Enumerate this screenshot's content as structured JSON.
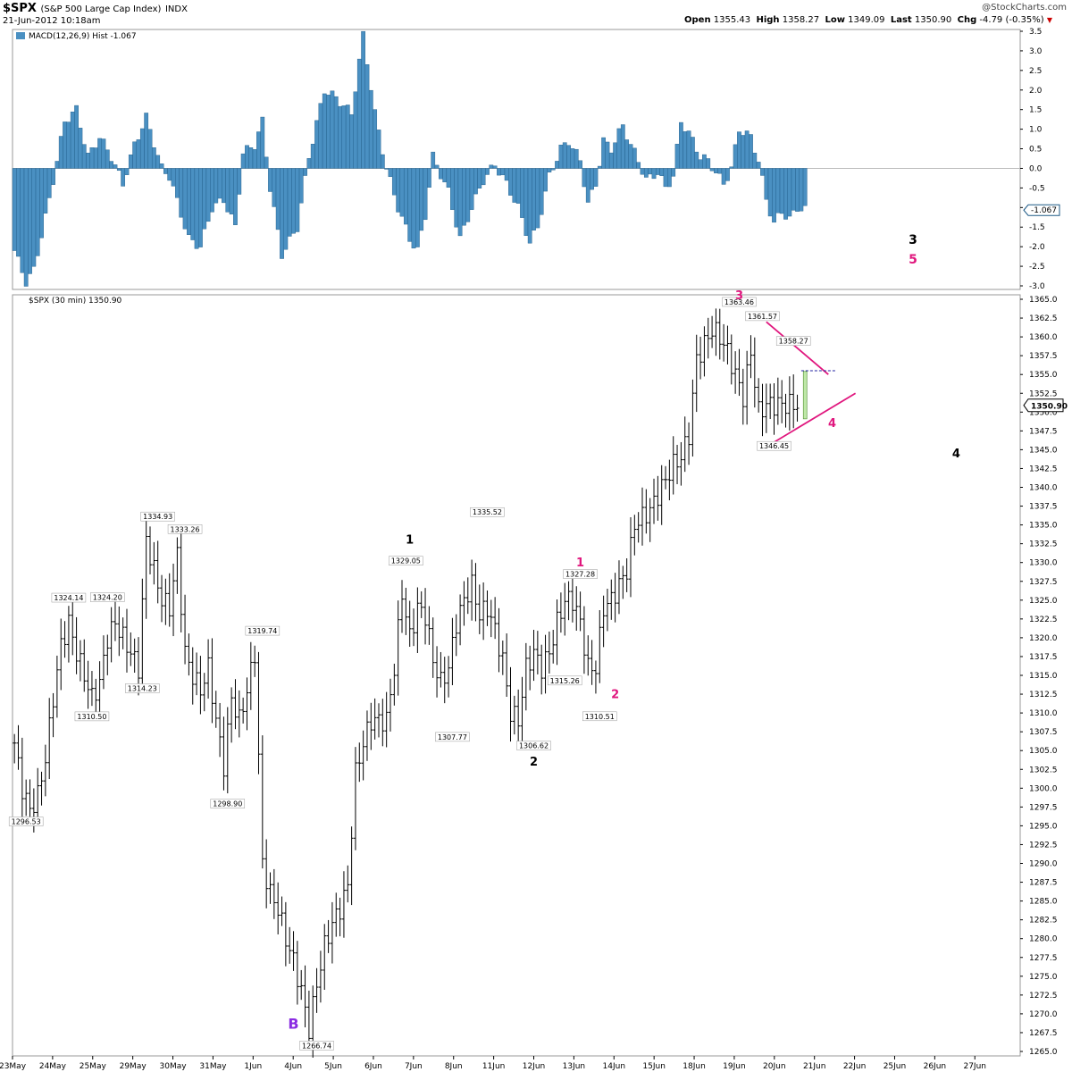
{
  "header": {
    "symbol": "$SPX",
    "name": "(S&P 500 Large Cap Index)",
    "exchange": "INDX",
    "datetime": "21-Jun-2012 10:18am",
    "open_label": "Open",
    "open": "1355.43",
    "high_label": "High",
    "high": "1358.27",
    "low_label": "Low",
    "low": "1349.09",
    "last_label": "Last",
    "last": "1350.90",
    "chg_label": "Chg",
    "chg": "-4.79 (-0.35%)",
    "watermark": "@StockCharts.com"
  },
  "colors": {
    "bar": "#000000",
    "hist": "#4a90c2",
    "hist_edge": "#1d5a86",
    "pink": "#e0177e",
    "purple": "#8a2be2",
    "grid": "#cccccc"
  },
  "chart_data": [
    {
      "type": "bar",
      "title": "MACD(12,26,9) Hist -1.067",
      "ylim": [
        -3.0,
        3.5
      ],
      "y_ticks": [
        "3.5",
        "3.0",
        "2.5",
        "2.0",
        "1.5",
        "1.0",
        "0.5",
        "0.0",
        "-0.5",
        "-1.0",
        "-1.5",
        "-2.0",
        "-2.5",
        "-3.0"
      ],
      "current_value": "-1.067",
      "key_points": [
        [
          0,
          -2.1
        ],
        [
          3,
          -2.9
        ],
        [
          5,
          -2.6
        ],
        [
          9,
          -0.8
        ],
        [
          13,
          1.2
        ],
        [
          16,
          1.5
        ],
        [
          19,
          0.3
        ],
        [
          22,
          0.8
        ],
        [
          25,
          0.3
        ],
        [
          28,
          -0.4
        ],
        [
          31,
          0.6
        ],
        [
          34,
          1.3
        ],
        [
          38,
          0.0
        ],
        [
          40,
          -0.2
        ],
        [
          45,
          -1.8
        ],
        [
          48,
          -2.0
        ],
        [
          51,
          -1.0
        ],
        [
          54,
          -0.8
        ],
        [
          57,
          -1.5
        ],
        [
          59,
          0.4
        ],
        [
          62,
          0.6
        ],
        [
          64,
          1.2
        ],
        [
          66,
          -0.5
        ],
        [
          69,
          -2.2
        ],
        [
          73,
          -1.5
        ],
        [
          76,
          0.3
        ],
        [
          80,
          2.0
        ],
        [
          83,
          1.8
        ],
        [
          87,
          1.4
        ],
        [
          90,
          3.4
        ],
        [
          93,
          1.4
        ],
        [
          96,
          0.0
        ],
        [
          99,
          -1.0
        ],
        [
          102,
          -1.8
        ],
        [
          104,
          -2.1
        ],
        [
          106,
          -1.2
        ],
        [
          108,
          0.3
        ],
        [
          112,
          -0.6
        ],
        [
          115,
          -1.8
        ],
        [
          118,
          -1.0
        ],
        [
          121,
          -0.3
        ],
        [
          124,
          0.1
        ],
        [
          127,
          -0.4
        ],
        [
          130,
          -1.0
        ],
        [
          133,
          -1.9
        ],
        [
          135,
          -1.5
        ],
        [
          138,
          -0.2
        ],
        [
          141,
          0.5
        ],
        [
          143,
          0.7
        ],
        [
          146,
          0.2
        ],
        [
          148,
          -0.9
        ],
        [
          150,
          -0.4
        ],
        [
          152,
          0.7
        ],
        [
          154,
          0.5
        ],
        [
          157,
          1.1
        ],
        [
          159,
          0.6
        ],
        [
          161,
          0.2
        ],
        [
          163,
          -0.3
        ],
        [
          166,
          -0.1
        ],
        [
          168,
          -0.5
        ],
        [
          170,
          -0.2
        ],
        [
          172,
          1.2
        ],
        [
          174,
          0.9
        ],
        [
          177,
          0.3
        ],
        [
          179,
          0.2
        ],
        [
          181,
          -0.1
        ],
        [
          183,
          -0.4
        ],
        [
          185,
          0.0
        ],
        [
          187,
          1.0
        ],
        [
          190,
          0.8
        ],
        [
          192,
          0.2
        ],
        [
          194,
          -0.8
        ],
        [
          196,
          -1.4
        ],
        [
          198,
          -1.1
        ],
        [
          200,
          -1.3
        ],
        [
          202,
          -1.0
        ],
        [
          204,
          -1.067
        ]
      ]
    },
    {
      "type": "bar",
      "title": "$SPX (30 min) 1350.90",
      "ylim": [
        1265.0,
        1365.0
      ],
      "y_ticks": [
        "1365.0",
        "1362.5",
        "1360.0",
        "1357.5",
        "1355.0",
        "1352.5",
        "1350.0",
        "1347.5",
        "1345.0",
        "1342.5",
        "1340.0",
        "1337.5",
        "1335.0",
        "1332.5",
        "1330.0",
        "1327.5",
        "1325.0",
        "1322.5",
        "1320.0",
        "1317.5",
        "1315.0",
        "1312.5",
        "1310.0",
        "1307.5",
        "1305.0",
        "1302.5",
        "1300.0",
        "1297.5",
        "1295.0",
        "1292.5",
        "1290.0",
        "1287.5",
        "1285.0",
        "1282.5",
        "1280.0",
        "1277.5",
        "1275.0",
        "1272.5",
        "1270.0",
        "1267.5",
        "1265.0"
      ],
      "x_ticks": [
        "23May",
        "24May",
        "25May",
        "29May",
        "30May",
        "31May",
        "1Jun",
        "4Jun",
        "5Jun",
        "6Jun",
        "7Jun",
        "8Jun",
        "11Jun",
        "12Jun",
        "13Jun",
        "14Jun",
        "15Jun",
        "18Jun",
        "19Jun",
        "20Jun",
        "21Jun",
        "22Jun",
        "25Jun",
        "26Jun",
        "27Jun"
      ],
      "last_price": "1350.90",
      "close_path": [
        [
          0,
          1306.0
        ],
        [
          2,
          1300.0
        ],
        [
          4,
          1297.0
        ],
        [
          6,
          1299.0
        ],
        [
          8,
          1304.0
        ],
        [
          10,
          1312.0
        ],
        [
          12,
          1319.0
        ],
        [
          14,
          1322.0
        ],
        [
          16,
          1318.0
        ],
        [
          18,
          1315.0
        ],
        [
          20,
          1312.0
        ],
        [
          22,
          1314.0
        ],
        [
          24,
          1320.0
        ],
        [
          26,
          1322.0
        ],
        [
          28,
          1320.0
        ],
        [
          30,
          1318.0
        ],
        [
          32,
          1316.0
        ],
        [
          34,
          1333.0
        ],
        [
          36,
          1329.0
        ],
        [
          38,
          1325.0
        ],
        [
          40,
          1324.0
        ],
        [
          42,
          1331.0
        ],
        [
          44,
          1318.0
        ],
        [
          46,
          1315.0
        ],
        [
          48,
          1313.0
        ],
        [
          50,
          1316.0
        ],
        [
          52,
          1309.0
        ],
        [
          54,
          1303.0
        ],
        [
          56,
          1312.0
        ],
        [
          58,
          1309.0
        ],
        [
          60,
          1313.0
        ],
        [
          62,
          1318.0
        ],
        [
          64,
          1290.0
        ],
        [
          66,
          1286.0
        ],
        [
          68,
          1284.0
        ],
        [
          70,
          1280.0
        ],
        [
          72,
          1277.0
        ],
        [
          74,
          1273.0
        ],
        [
          76,
          1268.0
        ],
        [
          78,
          1274.0
        ],
        [
          80,
          1279.0
        ],
        [
          82,
          1282.0
        ],
        [
          84,
          1284.0
        ],
        [
          86,
          1287.0
        ],
        [
          88,
          1302.0
        ],
        [
          90,
          1306.0
        ],
        [
          92,
          1309.0
        ],
        [
          94,
          1309.0
        ],
        [
          96,
          1309.0
        ],
        [
          98,
          1316.0
        ],
        [
          100,
          1326.0
        ],
        [
          102,
          1320.0
        ],
        [
          104,
          1324.0
        ],
        [
          106,
          1323.0
        ],
        [
          108,
          1317.0
        ],
        [
          110,
          1314.0
        ],
        [
          112,
          1316.0
        ],
        [
          114,
          1322.0
        ],
        [
          116,
          1325.0
        ],
        [
          118,
          1327.0
        ],
        [
          120,
          1323.0
        ],
        [
          122,
          1324.0
        ],
        [
          124,
          1321.0
        ],
        [
          126,
          1317.0
        ],
        [
          128,
          1310.0
        ],
        [
          130,
          1309.0
        ],
        [
          132,
          1316.0
        ],
        [
          134,
          1318.0
        ],
        [
          136,
          1316.0
        ],
        [
          138,
          1318.0
        ],
        [
          140,
          1322.0
        ],
        [
          142,
          1325.0
        ],
        [
          144,
          1325.0
        ],
        [
          146,
          1322.0
        ],
        [
          148,
          1316.0
        ],
        [
          150,
          1316.0
        ],
        [
          152,
          1324.0
        ],
        [
          154,
          1325.0
        ],
        [
          156,
          1327.0
        ],
        [
          158,
          1329.0
        ],
        [
          160,
          1335.0
        ],
        [
          162,
          1336.0
        ],
        [
          164,
          1337.0
        ],
        [
          166,
          1339.0
        ],
        [
          168,
          1341.0
        ],
        [
          170,
          1343.0
        ],
        [
          172,
          1344.0
        ],
        [
          174,
          1347.0
        ],
        [
          176,
          1357.0
        ],
        [
          178,
          1359.0
        ],
        [
          180,
          1361.0
        ],
        [
          182,
          1360.0
        ],
        [
          184,
          1358.0
        ],
        [
          186,
          1355.0
        ],
        [
          188,
          1352.0
        ],
        [
          190,
          1358.0
        ],
        [
          192,
          1350.0
        ],
        [
          194,
          1351.0
        ]
      ],
      "price_labels": [
        {
          "text": "1296.53",
          "bar": 3,
          "price": 1296.53,
          "pos": "below"
        },
        {
          "text": "1324.14",
          "bar": 14,
          "price": 1324.14,
          "pos": "above"
        },
        {
          "text": "1310.50",
          "bar": 20,
          "price": 1310.5,
          "pos": "below"
        },
        {
          "text": "1324.20",
          "bar": 24,
          "price": 1324.2,
          "pos": "above"
        },
        {
          "text": "1314.23",
          "bar": 33,
          "price": 1314.23,
          "pos": "below"
        },
        {
          "text": "1334.93",
          "bar": 37,
          "price": 1334.93,
          "pos": "above"
        },
        {
          "text": "1333.26",
          "bar": 44,
          "price": 1333.26,
          "pos": "above"
        },
        {
          "text": "1298.90",
          "bar": 55,
          "price": 1298.9,
          "pos": "below"
        },
        {
          "text": "1319.74",
          "bar": 64,
          "price": 1319.74,
          "pos": "above"
        },
        {
          "text": "1266.74",
          "bar": 78,
          "price": 1266.74,
          "pos": "below"
        },
        {
          "text": "1329.05",
          "bar": 101,
          "price": 1329.05,
          "pos": "above"
        },
        {
          "text": "1307.77",
          "bar": 113,
          "price": 1307.77,
          "pos": "below"
        },
        {
          "text": "1335.52",
          "bar": 122,
          "price": 1335.52,
          "pos": "above"
        },
        {
          "text": "1306.62",
          "bar": 134,
          "price": 1306.62,
          "pos": "below"
        },
        {
          "text": "1315.26",
          "bar": 142,
          "price": 1315.26,
          "pos": "below"
        },
        {
          "text": "1327.28",
          "bar": 146,
          "price": 1327.28,
          "pos": "above"
        },
        {
          "text": "1310.51",
          "bar": 151,
          "price": 1310.51,
          "pos": "below"
        },
        {
          "text": "1363.46",
          "bar": 187,
          "price": 1363.46,
          "pos": "above"
        },
        {
          "text": "1361.57",
          "bar": 193,
          "price": 1361.57,
          "pos": "above"
        },
        {
          "text": "1358.27",
          "bar": 201,
          "price": 1358.27,
          "pos": "above"
        },
        {
          "text": "1346.45",
          "bar": 196,
          "price": 1346.45,
          "pos": "below"
        }
      ],
      "wave_labels": [
        {
          "text": "B",
          "bar": 72,
          "price": 1268.0,
          "color": "purple"
        },
        {
          "text": "1",
          "bar": 102,
          "price": 1332.5,
          "color": "black"
        },
        {
          "text": "2",
          "bar": 134,
          "price": 1303.0,
          "color": "black"
        },
        {
          "text": "1",
          "bar": 146,
          "price": 1329.5,
          "color": "pink"
        },
        {
          "text": "2",
          "bar": 155,
          "price": 1312.0,
          "color": "pink"
        },
        {
          "text": "3",
          "bar": 187,
          "price": 1365.0,
          "color": "pink"
        },
        {
          "text": "4",
          "bar": 211,
          "price": 1348.0,
          "color": "pink"
        },
        {
          "text": "4",
          "bar": 243,
          "price": 1344.0,
          "color": "black"
        }
      ],
      "panel_wave_labels": [
        {
          "text": "3",
          "color": "black"
        },
        {
          "text": "5",
          "color": "pink"
        }
      ],
      "trendlines": [
        {
          "from": [
            194,
            1362.0
          ],
          "to": [
            210,
            1355.0
          ],
          "color": "pink"
        },
        {
          "from": [
            196,
            1346.0
          ],
          "to": [
            217,
            1352.5
          ],
          "color": "pink"
        }
      ],
      "dashed_level": 1355.5
    }
  ]
}
